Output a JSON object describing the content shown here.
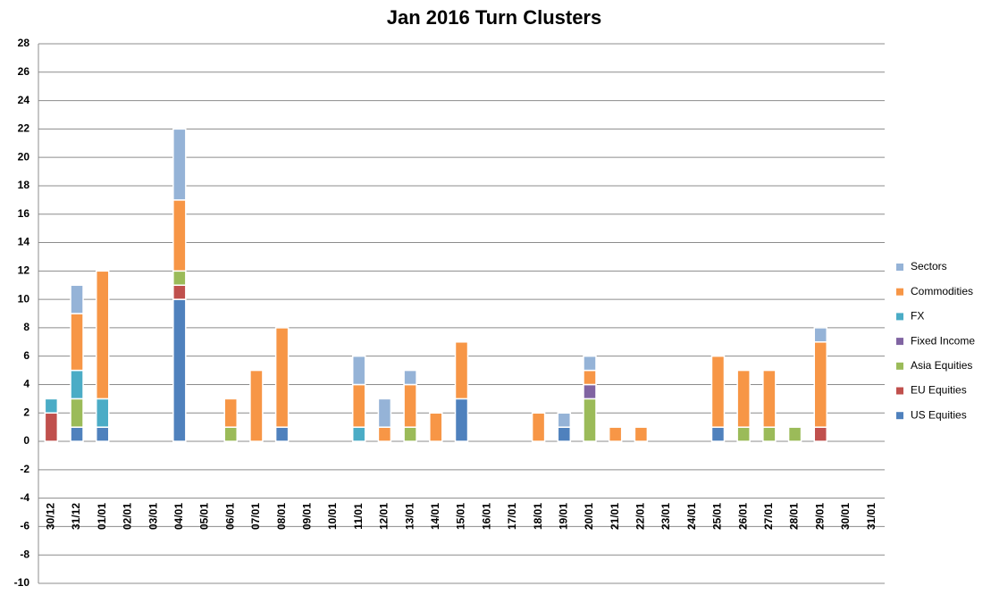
{
  "chart_data": {
    "type": "stacked_bar",
    "title": "Jan 2016 Turn Clusters",
    "categories": [
      "30/12",
      "31/12",
      "01/01",
      "02/01",
      "03/01",
      "04/01",
      "05/01",
      "06/01",
      "07/01",
      "08/01",
      "09/01",
      "10/01",
      "11/01",
      "12/01",
      "13/01",
      "14/01",
      "15/01",
      "16/01",
      "17/01",
      "18/01",
      "19/01",
      "20/01",
      "21/01",
      "22/01",
      "23/01",
      "24/01",
      "25/01",
      "26/01",
      "27/01",
      "28/01",
      "29/01",
      "30/01",
      "31/01"
    ],
    "series": [
      {
        "name": "US Equities",
        "color": "#4f81bd",
        "values": [
          0,
          1,
          1,
          0,
          0,
          10,
          0,
          0,
          0,
          1,
          0,
          0,
          0,
          0,
          0,
          0,
          3,
          0,
          0,
          0,
          1,
          0,
          0,
          0,
          0,
          0,
          1,
          0,
          0,
          0,
          0,
          0,
          0
        ]
      },
      {
        "name": "EU Equities",
        "color": "#c0504d",
        "values": [
          2,
          0,
          0,
          0,
          0,
          1,
          0,
          0,
          0,
          0,
          0,
          0,
          0,
          0,
          0,
          0,
          0,
          0,
          0,
          0,
          0,
          0,
          0,
          0,
          0,
          0,
          0,
          0,
          0,
          0,
          1,
          0,
          0
        ]
      },
      {
        "name": "Asia Equities",
        "color": "#9bbb59",
        "values": [
          0,
          2,
          0,
          0,
          0,
          1,
          0,
          1,
          0,
          0,
          0,
          0,
          0,
          0,
          1,
          0,
          0,
          0,
          0,
          0,
          0,
          3,
          0,
          0,
          0,
          0,
          0,
          1,
          1,
          1,
          0,
          0,
          0
        ]
      },
      {
        "name": "Fixed Income",
        "color": "#8064a2",
        "values": [
          0,
          0,
          0,
          0,
          0,
          0,
          0,
          0,
          0,
          0,
          0,
          0,
          0,
          0,
          0,
          0,
          0,
          0,
          0,
          0,
          0,
          1,
          0,
          0,
          0,
          0,
          0,
          0,
          0,
          0,
          0,
          0,
          0
        ]
      },
      {
        "name": "FX",
        "color": "#4bacc6",
        "values": [
          1,
          2,
          2,
          0,
          0,
          0,
          0,
          0,
          0,
          0,
          0,
          0,
          1,
          0,
          0,
          0,
          0,
          0,
          0,
          0,
          0,
          0,
          0,
          0,
          0,
          0,
          0,
          0,
          0,
          0,
          0,
          0,
          0
        ]
      },
      {
        "name": "Commodities",
        "color": "#f79646",
        "values": [
          0,
          4,
          9,
          0,
          0,
          5,
          0,
          2,
          5,
          7,
          0,
          0,
          3,
          1,
          3,
          2,
          4,
          0,
          0,
          2,
          0,
          1,
          1,
          1,
          0,
          0,
          5,
          4,
          4,
          0,
          6,
          0,
          0
        ]
      },
      {
        "name": "Sectors",
        "color": "#95b3d7",
        "values": [
          0,
          2,
          0,
          0,
          0,
          5,
          0,
          0,
          0,
          0,
          0,
          0,
          2,
          2,
          1,
          0,
          0,
          0,
          0,
          0,
          1,
          1,
          0,
          0,
          0,
          0,
          0,
          0,
          0,
          0,
          1,
          0,
          0
        ]
      }
    ],
    "ylim": [
      -10,
      28
    ],
    "yticks": [
      -10,
      -8,
      -6,
      -4,
      -2,
      0,
      2,
      4,
      6,
      8,
      10,
      12,
      14,
      16,
      18,
      20,
      22,
      24,
      26,
      28
    ],
    "grid": true,
    "legend": "right"
  }
}
